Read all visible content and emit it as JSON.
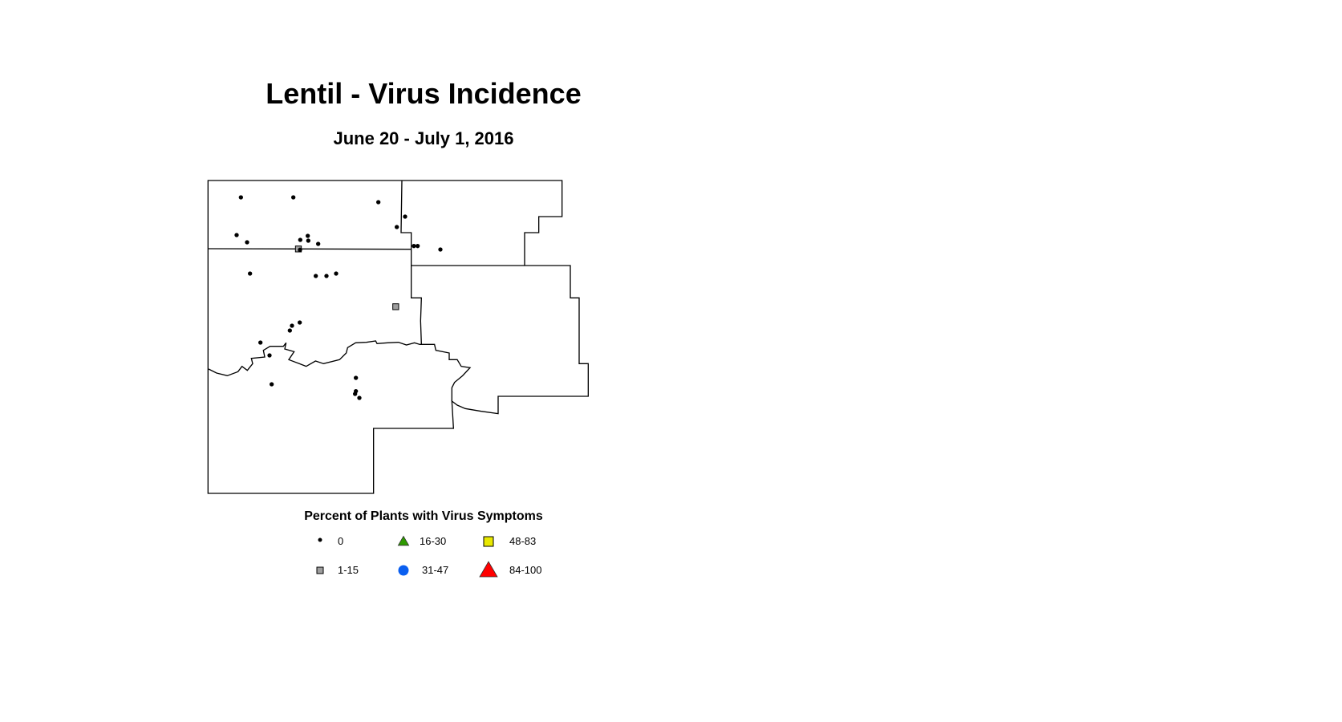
{
  "title": "Lentil - Virus Incidence",
  "subtitle": "June 20 - July 1, 2016",
  "legend": {
    "title": "Percent of Plants with Virus Symptoms",
    "items": [
      {
        "label": "0",
        "symbol": "small-dot",
        "color": "#000000"
      },
      {
        "label": "1-15",
        "symbol": "square",
        "color": "#9e9e9e"
      },
      {
        "label": "16-30",
        "symbol": "triangle",
        "color": "#2e9a00"
      },
      {
        "label": "31-47",
        "symbol": "circle",
        "color": "#0a5ff0"
      },
      {
        "label": "48-83",
        "symbol": "square",
        "color": "#e8e800"
      },
      {
        "label": "84-100",
        "symbol": "triangle",
        "color": "#ff0000"
      }
    ]
  }
}
